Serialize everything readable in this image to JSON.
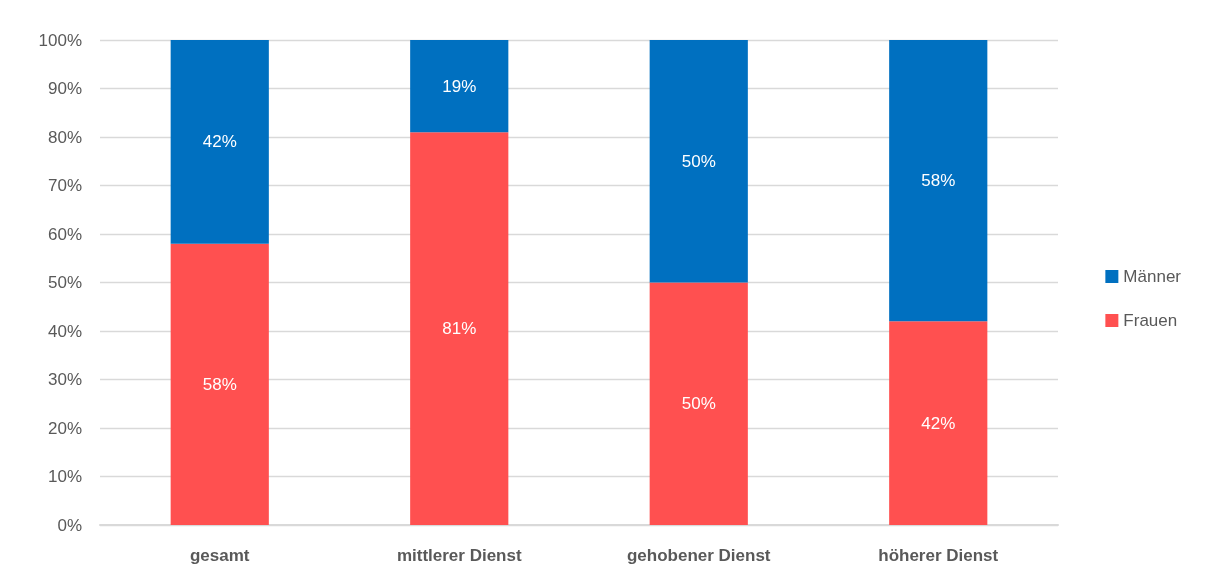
{
  "chart_data": {
    "type": "bar",
    "stacked": true,
    "categories": [
      "gesamt",
      "mittlerer Dienst",
      "gehobener Dienst",
      "höherer Dienst"
    ],
    "series": [
      {
        "name": "Frauen",
        "color": "#ff5050",
        "values": [
          58,
          81,
          50,
          42
        ],
        "value_labels": [
          "58%",
          "81%",
          "50%",
          "42%"
        ]
      },
      {
        "name": "Männer",
        "color": "#0070c0",
        "values": [
          42,
          19,
          50,
          58
        ],
        "value_labels": [
          "42%",
          "19%",
          "50%",
          "58%"
        ]
      }
    ],
    "ylim": [
      0,
      100
    ],
    "yticks": [
      {
        "value": 0,
        "label": "0%"
      },
      {
        "value": 10,
        "label": "10%"
      },
      {
        "value": 20,
        "label": "20%"
      },
      {
        "value": 30,
        "label": "30%"
      },
      {
        "value": 40,
        "label": "40%"
      },
      {
        "value": 50,
        "label": "50%"
      },
      {
        "value": 60,
        "label": "60%"
      },
      {
        "value": 70,
        "label": "70%"
      },
      {
        "value": 80,
        "label": "80%"
      },
      {
        "value": 90,
        "label": "90%"
      },
      {
        "value": 100,
        "label": "100%"
      }
    ],
    "grid": "y",
    "legend": "right"
  }
}
